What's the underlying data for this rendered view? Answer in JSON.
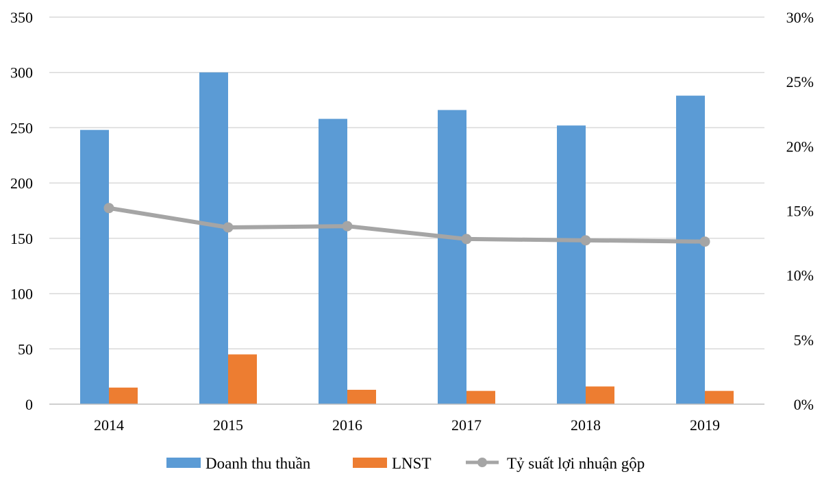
{
  "chart_data": {
    "type": "bar",
    "title": "",
    "categories": [
      "2014",
      "2015",
      "2016",
      "2017",
      "2018",
      "2019"
    ],
    "series": [
      {
        "name": "Doanh thu thuần",
        "kind": "bar",
        "axis": "left",
        "color": "#5B9BD5",
        "values": [
          248,
          300,
          258,
          266,
          252,
          279
        ]
      },
      {
        "name": "LNST",
        "kind": "bar",
        "axis": "left",
        "color": "#ED7D31",
        "values": [
          15,
          45,
          13,
          12,
          16,
          12
        ]
      },
      {
        "name": "Tỷ suất lợi nhuận gộp",
        "kind": "line",
        "axis": "right",
        "color": "#A5A5A5",
        "values": [
          15.2,
          13.7,
          13.8,
          12.8,
          12.7,
          12.6
        ]
      }
    ],
    "y_left": {
      "min": 0,
      "max": 350,
      "ticks": [
        "0",
        "50",
        "100",
        "150",
        "200",
        "250",
        "300",
        "350"
      ]
    },
    "y_right": {
      "min": 0,
      "max": 30,
      "ticks": [
        "0%",
        "5%",
        "10%",
        "15%",
        "20%",
        "25%",
        "30%"
      ]
    },
    "grid": true,
    "legend_position": "bottom",
    "gridline_color": "#D9D9D9",
    "axis_color": "#BFBFBF"
  }
}
